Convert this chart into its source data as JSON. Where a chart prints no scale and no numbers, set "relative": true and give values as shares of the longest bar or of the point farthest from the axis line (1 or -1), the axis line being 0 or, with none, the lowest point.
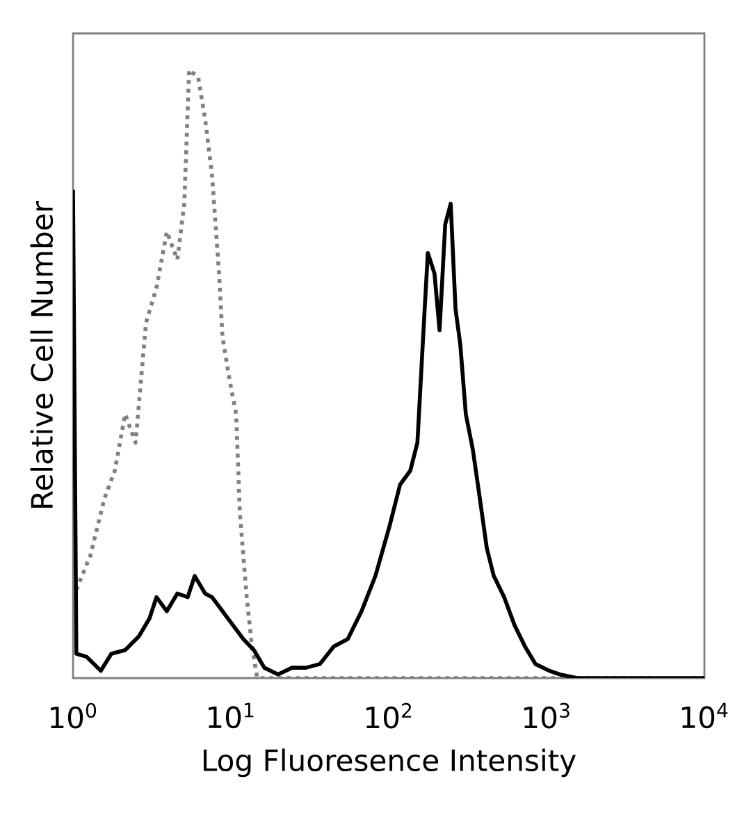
{
  "chart_data": {
    "type": "line",
    "relative": true,
    "log": "x",
    "xlabel": "Log Fluoresence Intensity",
    "ylabel": "Relative Cell Number",
    "tick_labels": "x",
    "xlim": [
      1,
      10000
    ],
    "xticks": [
      {
        "value": 1,
        "label": "10$^{0}$"
      },
      {
        "value": 10,
        "label": "10$^{1}$"
      },
      {
        "value": 100,
        "label": "10$^{2}$"
      },
      {
        "value": 1000,
        "label": "10$^{3}$"
      },
      {
        "value": 10000,
        "label": "10$^{4}$"
      }
    ],
    "series": [
      {
        "color": "#808080",
        "line_style": "dotted",
        "x": [
          1.05,
          1.29,
          1.58,
          1.84,
          2.14,
          2.49,
          2.9,
          3.38,
          3.93,
          4.58,
          5.07,
          5.44,
          6.21,
          6.87,
          7.6,
          8.42,
          8.85,
          9.8,
          10.8,
          11.4,
          12.6,
          13.6,
          14.7,
          10000
        ],
        "values": [
          0.145,
          0.202,
          0.295,
          0.341,
          0.434,
          0.387,
          0.584,
          0.642,
          0.734,
          0.688,
          0.78,
          1,
          0.988,
          0.919,
          0.827,
          0.665,
          0.561,
          0.491,
          0.434,
          0.272,
          0.133,
          0.052,
          0,
          0
        ]
      },
      {
        "color": "#000000",
        "line_style": "solid",
        "x": [
          1.0,
          1.05,
          1.22,
          1.5,
          1.75,
          2.14,
          2.62,
          3.05,
          3.38,
          3.93,
          4.58,
          5.33,
          5.9,
          6.87,
          7.6,
          8.85,
          10.3,
          12.0,
          14.0,
          16.3,
          19.9,
          24.4,
          29.9,
          36.6,
          44.9,
          55.0,
          67.3,
          82.4,
          101,
          118,
          137,
          152,
          168,
          177,
          195,
          210,
          228,
          247,
          265,
          284,
          308,
          341,
          378,
          418,
          463,
          539,
          627,
          730,
          851,
          1042,
          1213,
          1563,
          10000
        ],
        "values": [
          0.803,
          0.04,
          0.035,
          0.012,
          0.04,
          0.046,
          0.069,
          0.098,
          0.133,
          0.11,
          0.139,
          0.133,
          0.168,
          0.139,
          0.133,
          0.11,
          0.087,
          0.064,
          0.046,
          0.017,
          0.006,
          0.017,
          0.017,
          0.023,
          0.052,
          0.064,
          0.11,
          0.168,
          0.249,
          0.318,
          0.341,
          0.387,
          0.595,
          0.699,
          0.665,
          0.572,
          0.746,
          0.78,
          0.607,
          0.549,
          0.434,
          0.376,
          0.295,
          0.214,
          0.168,
          0.133,
          0.087,
          0.052,
          0.023,
          0.012,
          0.006,
          0,
          0
        ]
      }
    ]
  }
}
